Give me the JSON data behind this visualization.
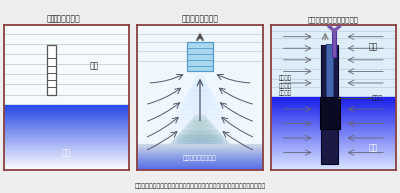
{
  "caption": "図１　左：揚水前の状態、中：揚水による塩水の混合、右：今回開発した技術",
  "panel1_title": "揚水前の状態",
  "panel2_title": "揚水による塩水化",
  "panel3_title": "塩水の揚水　　淡水の揚水",
  "panel1_label_fresh": "淡水",
  "panel1_label_salt": "塩水",
  "panel1_label_well": "井戸",
  "panel2_label": "圧力減少による流入",
  "panel3_label_barrier": "バリア",
  "panel3_label_pressure": "圧力差を\n無くし混\n合を抑止",
  "panel3_label_salt": "塩水",
  "panel3_label_fresh": "淡水",
  "bg_color": "#eeeeee",
  "border_color": "#8B4040",
  "caption_color": "#222222"
}
